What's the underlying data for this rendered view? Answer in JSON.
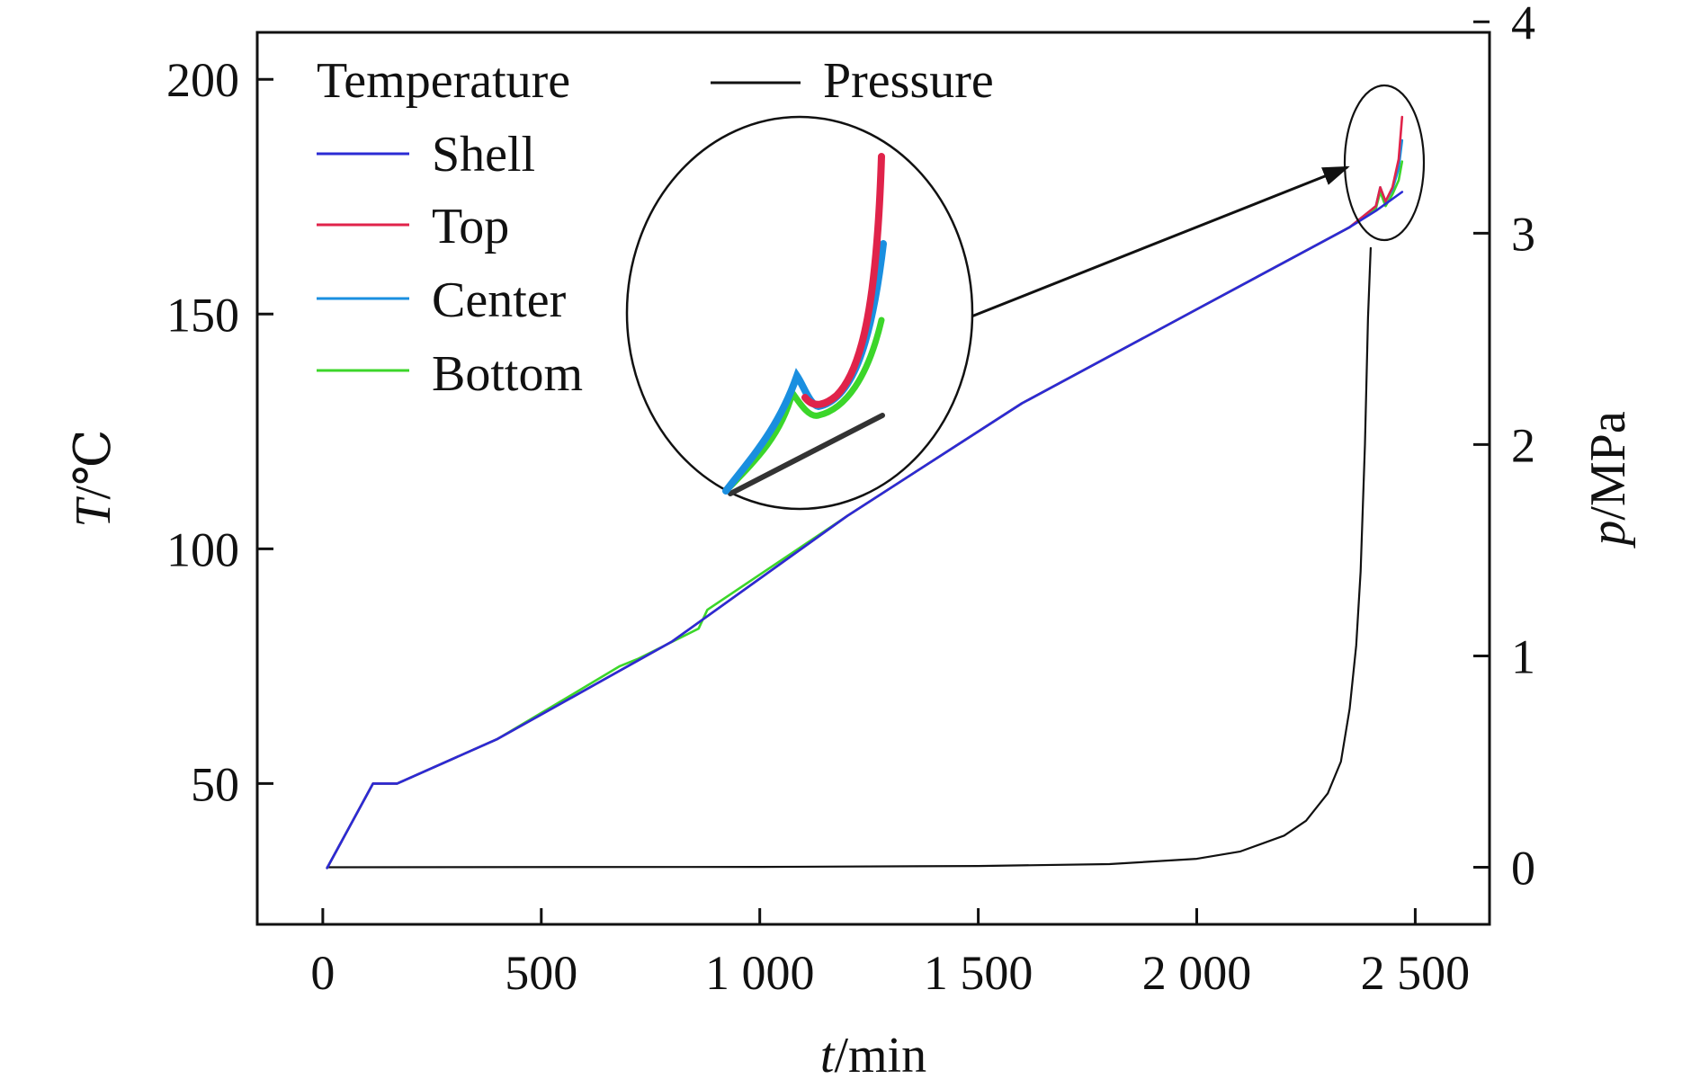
{
  "chart_data": {
    "type": "line",
    "xlabel": {
      "var": "t",
      "unit": "/min"
    },
    "ylabel_left": {
      "var": "T",
      "unit": "/℃"
    },
    "ylabel_right": {
      "var": "p",
      "unit": "/MPa"
    },
    "xlim": [
      -150,
      2670
    ],
    "ylim_left": [
      20,
      210
    ],
    "ylim_right": [
      -0.27,
      3.95
    ],
    "x_ticks": [
      {
        "value": 0,
        "label": "0"
      },
      {
        "value": 500,
        "label": "500"
      },
      {
        "value": 1000,
        "label": "1 000"
      },
      {
        "value": 1500,
        "label": "1 500"
      },
      {
        "value": 2000,
        "label": "2 000"
      },
      {
        "value": 2500,
        "label": "2 500"
      }
    ],
    "y_left_ticks": [
      {
        "value": 50,
        "label": "50"
      },
      {
        "value": 100,
        "label": "100"
      },
      {
        "value": 150,
        "label": "150"
      },
      {
        "value": 200,
        "label": "200"
      }
    ],
    "y_right_ticks": [
      {
        "value": 0,
        "label": "0"
      },
      {
        "value": 1,
        "label": "1"
      },
      {
        "value": 2,
        "label": "2"
      },
      {
        "value": 3,
        "label": "3"
      },
      {
        "value": 4,
        "label": "4"
      }
    ],
    "legend": {
      "group_title": "Temperature",
      "pressure_label": "Pressure"
    },
    "series": [
      {
        "name": "Shell",
        "axis": "left",
        "color": "#2b2bd4",
        "points": [
          [
            10,
            32
          ],
          [
            115,
            50
          ],
          [
            170,
            50
          ],
          [
            400,
            59.5
          ],
          [
            800,
            80.3
          ],
          [
            1200,
            107
          ],
          [
            1600,
            131
          ],
          [
            2000,
            151
          ],
          [
            2350,
            168.5
          ],
          [
            2410,
            172
          ],
          [
            2470,
            176
          ]
        ]
      },
      {
        "name": "Top",
        "axis": "left",
        "color": "#e0234a",
        "points": [
          [
            10,
            32
          ],
          [
            115,
            50
          ],
          [
            170,
            50
          ],
          [
            400,
            59.5
          ],
          [
            800,
            80.3
          ],
          [
            1200,
            107
          ],
          [
            1600,
            131
          ],
          [
            2000,
            151
          ],
          [
            2350,
            168.5
          ],
          [
            2410,
            173
          ],
          [
            2420,
            177
          ],
          [
            2432,
            174
          ],
          [
            2448,
            177
          ],
          [
            2462,
            183
          ],
          [
            2470,
            192
          ]
        ]
      },
      {
        "name": "Center",
        "axis": "left",
        "color": "#1a8fe0",
        "points": [
          [
            10,
            32
          ],
          [
            115,
            50
          ],
          [
            170,
            50
          ],
          [
            400,
            59.5
          ],
          [
            800,
            80.3
          ],
          [
            1200,
            107
          ],
          [
            1600,
            131
          ],
          [
            2000,
            151
          ],
          [
            2350,
            168.5
          ],
          [
            2410,
            173
          ],
          [
            2420,
            177
          ],
          [
            2432,
            174
          ],
          [
            2448,
            176.5
          ],
          [
            2462,
            181
          ],
          [
            2470,
            187
          ]
        ]
      },
      {
        "name": "Bottom",
        "axis": "left",
        "color": "#3cd62a",
        "points": [
          [
            10,
            32
          ],
          [
            115,
            50
          ],
          [
            170,
            50
          ],
          [
            400,
            59.5
          ],
          [
            680,
            75
          ],
          [
            720,
            76.5
          ],
          [
            860,
            83
          ],
          [
            880,
            87
          ],
          [
            1200,
            107
          ],
          [
            1600,
            131
          ],
          [
            2000,
            151
          ],
          [
            2350,
            168.5
          ],
          [
            2410,
            172.5
          ],
          [
            2420,
            176
          ],
          [
            2432,
            173
          ],
          [
            2448,
            175.5
          ],
          [
            2462,
            178.5
          ],
          [
            2470,
            182.5
          ]
        ]
      },
      {
        "name": "Pressure",
        "axis": "right",
        "color": "#111111",
        "points": [
          [
            10,
            0
          ],
          [
            1000,
            0.002
          ],
          [
            1500,
            0.006
          ],
          [
            1800,
            0.015
          ],
          [
            2000,
            0.04
          ],
          [
            2100,
            0.075
          ],
          [
            2200,
            0.15
          ],
          [
            2250,
            0.22
          ],
          [
            2300,
            0.35
          ],
          [
            2330,
            0.5
          ],
          [
            2350,
            0.75
          ],
          [
            2365,
            1.05
          ],
          [
            2375,
            1.4
          ],
          [
            2385,
            2.0
          ],
          [
            2392,
            2.6
          ],
          [
            2398,
            2.93
          ]
        ]
      }
    ],
    "inset": {
      "note": "magnified view of the curve ends",
      "pressure_segment": [
        [
          2398,
          2.93
        ],
        [
          2470,
          3.05
        ]
      ]
    }
  }
}
